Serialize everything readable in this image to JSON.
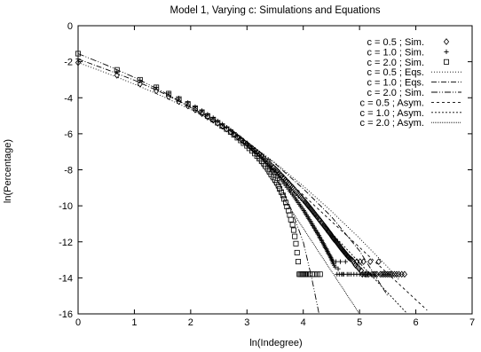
{
  "chart_data": {
    "type": "scatter",
    "title": "Model 1, Varying c: Simulations and Equations",
    "xlabel": "ln(Indegree)",
    "ylabel": "ln(Percentage)",
    "xlim": [
      0,
      7
    ],
    "ylim": [
      -16,
      0
    ],
    "xticks": [
      "0",
      "1",
      "2",
      "3",
      "4",
      "5",
      "6",
      "7"
    ],
    "yticks": [
      "0",
      "-2",
      "-4",
      "-6",
      "-8",
      "-10",
      "-12",
      "-14",
      "-16"
    ],
    "grid": false,
    "legend_position": "top-right",
    "series": [
      {
        "name": "c = 0.5 ; Sim.",
        "kind": "points",
        "marker": "diamond",
        "x": [
          0,
          0.69,
          1.1,
          1.39,
          1.61,
          1.79,
          1.95,
          2.08,
          2.2,
          2.3,
          2.4,
          2.48,
          2.56,
          2.64,
          2.71,
          2.77,
          2.83,
          2.89,
          2.94,
          3.0,
          3.04,
          3.09,
          3.14,
          3.18,
          3.22,
          3.26,
          3.3,
          3.33,
          3.37,
          3.4,
          3.43,
          3.47,
          3.5,
          3.53,
          3.56,
          3.58,
          3.61,
          3.64,
          3.66,
          3.69,
          3.71,
          3.74,
          3.76,
          3.78,
          3.81,
          3.83,
          3.85,
          3.87,
          3.89,
          3.91,
          3.93,
          3.95,
          3.97,
          3.99,
          4.01,
          4.03,
          4.04,
          4.06,
          4.08,
          4.09,
          4.11,
          4.13,
          4.14,
          4.16,
          4.17,
          4.19,
          4.2,
          4.22,
          4.23,
          4.25,
          4.26,
          4.28,
          4.29,
          4.3,
          4.32,
          4.33,
          4.34,
          4.36,
          4.37,
          4.38,
          4.39,
          4.41,
          4.42,
          4.43,
          4.44,
          4.45,
          4.47,
          4.48,
          4.49,
          4.5,
          4.51,
          4.52,
          4.53,
          4.54,
          4.55,
          4.57,
          4.58,
          4.59,
          4.6,
          4.61,
          4.62,
          4.63,
          4.64,
          4.65,
          4.66,
          4.67,
          4.68,
          4.69,
          4.7,
          4.71,
          4.72,
          4.73,
          4.74,
          4.75,
          4.76,
          4.77,
          4.78,
          4.79,
          4.8,
          4.81,
          4.83,
          4.85,
          4.87,
          4.89,
          4.91,
          4.93,
          4.95,
          4.97,
          4.99,
          5.01,
          5.03,
          5.05,
          5.07,
          5.1,
          5.13,
          5.16,
          5.19,
          5.22,
          5.25,
          5.28,
          5.31,
          5.34,
          5.37,
          5.4,
          5.43,
          5.46,
          5.49,
          5.52,
          5.55,
          5.58,
          5.62,
          5.66,
          5.7,
          5.75,
          5.8
        ],
        "y": [
          -2.05,
          -2.75,
          -3.24,
          -3.62,
          -3.94,
          -4.21,
          -4.45,
          -4.67,
          -4.88,
          -5.07,
          -5.25,
          -5.42,
          -5.58,
          -5.74,
          -5.89,
          -6.03,
          -6.17,
          -6.3,
          -6.43,
          -6.56,
          -6.68,
          -6.8,
          -6.92,
          -7.03,
          -7.14,
          -7.25,
          -7.36,
          -7.46,
          -7.56,
          -7.66,
          -7.76,
          -7.86,
          -7.95,
          -8.04,
          -8.13,
          -8.22,
          -8.31,
          -8.4,
          -8.48,
          -8.57,
          -8.65,
          -8.73,
          -8.81,
          -8.89,
          -8.97,
          -9.05,
          -9.12,
          -9.2,
          -9.27,
          -9.34,
          -9.41,
          -9.48,
          -9.55,
          -9.62,
          -9.69,
          -9.76,
          -9.82,
          -9.89,
          -9.95,
          -10.02,
          -10.08,
          -10.14,
          -10.2,
          -10.26,
          -10.32,
          -10.38,
          -10.44,
          -10.5,
          -10.56,
          -10.62,
          -10.67,
          -10.73,
          -10.78,
          -10.84,
          -10.89,
          -10.95,
          -11.0,
          -11.05,
          -11.1,
          -11.15,
          -11.2,
          -11.25,
          -11.3,
          -11.35,
          -11.4,
          -11.45,
          -11.5,
          -11.55,
          -11.6,
          -11.64,
          -11.69,
          -11.74,
          -11.78,
          -11.83,
          -11.87,
          -11.92,
          -11.96,
          -12.0,
          -12.05,
          -12.09,
          -12.13,
          -12.17,
          -12.21,
          -12.26,
          -12.3,
          -12.34,
          -12.38,
          -12.42,
          -12.46,
          -12.5,
          -12.53,
          -12.57,
          -12.61,
          -12.65,
          -12.69,
          -12.72,
          -12.76,
          -12.8,
          -12.83,
          -12.87,
          -12.92,
          -12.97,
          -13.02,
          -13.1,
          -13.2,
          -13.3,
          -13.1,
          -13.4,
          -13.5,
          -13.1,
          -13.6,
          -13.8,
          -13.1,
          -13.8,
          -13.8,
          -13.8,
          -13.1,
          -13.8,
          -13.8,
          -13.8,
          -13.8,
          -13.1,
          -13.8,
          -13.8,
          -13.8,
          -13.8,
          -13.8,
          -13.8,
          -13.8,
          -13.8,
          -13.8,
          -13.8,
          -13.8,
          -13.8,
          -13.8
        ]
      },
      {
        "name": "c = 1.0 ; Sim.",
        "kind": "points",
        "marker": "plus",
        "x": [
          0,
          0.69,
          1.1,
          1.39,
          1.61,
          1.79,
          1.95,
          2.08,
          2.2,
          2.3,
          2.4,
          2.48,
          2.56,
          2.64,
          2.71,
          2.77,
          2.83,
          2.89,
          2.94,
          3.0,
          3.04,
          3.09,
          3.14,
          3.18,
          3.22,
          3.26,
          3.3,
          3.33,
          3.37,
          3.4,
          3.43,
          3.47,
          3.5,
          3.53,
          3.56,
          3.58,
          3.61,
          3.64,
          3.66,
          3.69,
          3.71,
          3.74,
          3.76,
          3.78,
          3.81,
          3.83,
          3.85,
          3.87,
          3.89,
          3.91,
          3.93,
          3.95,
          3.97,
          3.99,
          4.01,
          4.03,
          4.04,
          4.06,
          4.08,
          4.09,
          4.11,
          4.13,
          4.14,
          4.16,
          4.17,
          4.19,
          4.2,
          4.22,
          4.23,
          4.25,
          4.26,
          4.28,
          4.29,
          4.3,
          4.32,
          4.33,
          4.34,
          4.36,
          4.37,
          4.38,
          4.39,
          4.41,
          4.42,
          4.43,
          4.44,
          4.45,
          4.47,
          4.48,
          4.49,
          4.5,
          4.51,
          4.52,
          4.53,
          4.54,
          4.55,
          4.57,
          4.58,
          4.6,
          4.62,
          4.64,
          4.66,
          4.68,
          4.7,
          4.72,
          4.75,
          4.78,
          4.81,
          4.85,
          4.9,
          4.95,
          5.0,
          5.05,
          5.1,
          5.15,
          5.2
        ],
        "y": [
          -1.85,
          -2.55,
          -3.03,
          -3.42,
          -3.74,
          -4.02,
          -4.27,
          -4.5,
          -4.72,
          -4.92,
          -5.11,
          -5.29,
          -5.47,
          -5.64,
          -5.8,
          -5.96,
          -6.11,
          -6.26,
          -6.4,
          -6.54,
          -6.68,
          -6.81,
          -6.94,
          -7.07,
          -7.2,
          -7.32,
          -7.44,
          -7.56,
          -7.68,
          -7.8,
          -7.91,
          -8.02,
          -8.13,
          -8.24,
          -8.35,
          -8.46,
          -8.56,
          -8.66,
          -8.77,
          -8.87,
          -8.97,
          -9.07,
          -9.17,
          -9.26,
          -9.36,
          -9.45,
          -9.55,
          -9.64,
          -9.73,
          -9.82,
          -9.91,
          -10.0,
          -10.09,
          -10.18,
          -10.27,
          -10.35,
          -10.44,
          -10.52,
          -10.61,
          -10.69,
          -10.77,
          -10.86,
          -10.94,
          -11.02,
          -11.1,
          -11.18,
          -11.26,
          -11.34,
          -11.42,
          -11.5,
          -11.57,
          -11.65,
          -11.73,
          -11.8,
          -11.88,
          -11.95,
          -12.03,
          -12.1,
          -12.17,
          -12.25,
          -12.32,
          -12.39,
          -12.46,
          -12.53,
          -12.6,
          -12.67,
          -12.74,
          -12.81,
          -12.88,
          -12.95,
          -13.02,
          -13.1,
          -13.2,
          -13.1,
          -13.3,
          -13.4,
          -13.1,
          -13.8,
          -13.5,
          -13.8,
          -13.1,
          -13.8,
          -13.8,
          -13.8,
          -13.1,
          -13.8,
          -13.8,
          -13.8,
          -13.8,
          -13.8,
          -13.8,
          -13.8,
          -13.8,
          -13.8,
          -13.8
        ]
      },
      {
        "name": "c = 2.0 ; Sim.",
        "kind": "points",
        "marker": "square",
        "x": [
          0,
          0.69,
          1.1,
          1.39,
          1.61,
          1.79,
          1.95,
          2.08,
          2.2,
          2.3,
          2.4,
          2.48,
          2.56,
          2.64,
          2.71,
          2.77,
          2.83,
          2.89,
          2.94,
          3.0,
          3.04,
          3.09,
          3.14,
          3.18,
          3.22,
          3.26,
          3.3,
          3.33,
          3.37,
          3.4,
          3.43,
          3.47,
          3.5,
          3.53,
          3.56,
          3.58,
          3.61,
          3.64,
          3.66,
          3.69,
          3.71,
          3.74,
          3.76,
          3.78,
          3.81,
          3.83,
          3.85,
          3.87,
          3.89,
          3.91,
          3.93,
          3.95,
          3.97,
          3.99,
          4.01,
          4.03,
          4.05,
          4.08,
          4.12,
          4.16,
          4.2,
          4.25,
          4.3
        ],
        "y": [
          -1.55,
          -2.45,
          -3.0,
          -3.42,
          -3.77,
          -4.07,
          -4.34,
          -4.58,
          -4.8,
          -5.01,
          -5.21,
          -5.39,
          -5.57,
          -5.74,
          -5.9,
          -6.06,
          -6.22,
          -6.37,
          -6.52,
          -6.67,
          -6.81,
          -6.95,
          -7.1,
          -7.24,
          -7.38,
          -7.52,
          -7.66,
          -7.8,
          -7.95,
          -8.1,
          -8.25,
          -8.4,
          -8.56,
          -8.72,
          -8.89,
          -9.06,
          -9.24,
          -9.42,
          -9.62,
          -9.82,
          -10.04,
          -10.27,
          -10.51,
          -10.77,
          -11.05,
          -11.35,
          -11.7,
          -12.1,
          -12.6,
          -13.1,
          -13.8,
          -13.8,
          -13.8,
          -13.8,
          -13.8,
          -13.8,
          -13.8,
          -13.8,
          -13.8,
          -13.8,
          -13.8,
          -13.8,
          -13.8
        ]
      },
      {
        "name": "c = 0.5 ; Eqs.",
        "kind": "line",
        "dash": "1,2",
        "x": [
          0,
          0.5,
          1.0,
          1.5,
          2.0,
          2.5,
          3.0,
          3.5,
          4.0,
          4.5,
          5.0,
          5.5,
          5.7
        ],
        "y": [
          -2.05,
          -2.62,
          -3.24,
          -3.92,
          -4.65,
          -5.45,
          -6.44,
          -7.61,
          -8.9,
          -10.3,
          -11.8,
          -13.4,
          -14.1
        ]
      },
      {
        "name": "c = 1.0 ; Eqs.",
        "kind": "line",
        "dash": "6,2,1,2",
        "x": [
          0,
          0.5,
          1.0,
          1.5,
          2.0,
          2.5,
          3.0,
          3.5,
          4.0,
          4.5,
          5.0,
          5.2,
          5.5
        ],
        "y": [
          -1.85,
          -2.42,
          -3.03,
          -3.73,
          -4.52,
          -5.4,
          -6.45,
          -7.66,
          -9.05,
          -10.6,
          -12.5,
          -13.5,
          -15.0
        ]
      },
      {
        "name": "c = 2.0 ; Sim.",
        "kind": "line",
        "dash": "7,2,1,2,1,2",
        "x": [
          0,
          0.5,
          1.0,
          1.5,
          2.0,
          2.5,
          3.0,
          3.3,
          3.6,
          3.8,
          4.0,
          4.15,
          4.28
        ],
        "y": [
          -1.55,
          -2.18,
          -2.87,
          -3.65,
          -4.55,
          -5.55,
          -6.67,
          -7.5,
          -8.9,
          -10.3,
          -12.0,
          -14.0,
          -16.0
        ]
      },
      {
        "name": "c = 0.5 ; Asym.",
        "kind": "line",
        "dash": "3,3",
        "x": [
          3.0,
          6.2
        ],
        "y": [
          -6.5,
          -15.8
        ]
      },
      {
        "name": "c = 1.0 ; Asym.",
        "kind": "line",
        "dash": "2,2",
        "x": [
          3.0,
          5.85
        ],
        "y": [
          -6.5,
          -16.0
        ]
      },
      {
        "name": "c = 2.0 ; Asym.",
        "kind": "line",
        "dash": "1,1",
        "x": [
          3.0,
          5.0
        ],
        "y": [
          -6.5,
          -16.0
        ]
      }
    ]
  }
}
